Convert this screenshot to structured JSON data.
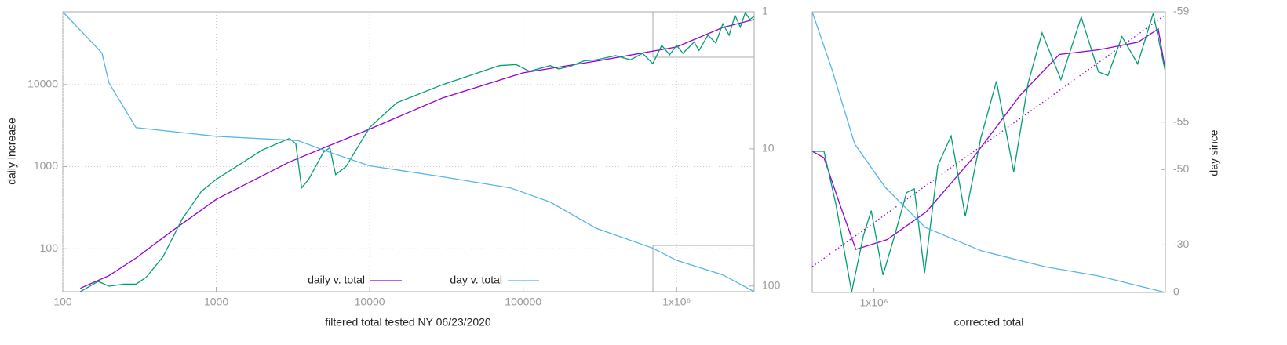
{
  "chart_data": [
    {
      "type": "line",
      "xlabel": "filtered total tested NY 06/23/2020",
      "ylabel": "daily increase",
      "xscale": "log",
      "yscale": "log",
      "y2scale": "log",
      "y2_reversed": true,
      "grid": true,
      "legend": "bottom",
      "xlim": [
        100,
        3200000
      ],
      "xticks": [
        100,
        1000,
        10000,
        100000,
        {
          "value": 1000000,
          "label": "1x10⁶"
        }
      ],
      "ylim": [
        30,
        77000
      ],
      "yticks": [
        100,
        1000,
        10000
      ],
      "y2lim": [
        1,
        110
      ],
      "y2ticks": [
        1,
        10,
        100
      ],
      "series": [
        {
          "name": "daily v. total",
          "color": "#9400d3",
          "x": [
            130,
            200,
            300,
            500,
            1000,
            3000,
            10000,
            30000,
            100000,
            300000,
            1000000,
            2000000,
            3200000
          ],
          "values": [
            33,
            47,
            77,
            158,
            400,
            1140,
            2870,
            6900,
            13900,
            19300,
            28700,
            49600,
            62000
          ]
        },
        {
          "color": "#009e73",
          "x": [
            130,
            170,
            200,
            250,
            300,
            350,
            450,
            600,
            800,
            1000,
            2000,
            3000,
            3300,
            3600,
            4000,
            5000,
            5500,
            6000,
            7000,
            10000,
            15000,
            30000,
            70000,
            90000,
            110000,
            150000,
            170000,
            200000,
            250000,
            300000,
            400000,
            500000,
            600000,
            700000,
            800000,
            900000,
            1000000,
            1100000,
            1300000,
            1400000,
            1600000,
            1800000,
            2000000,
            2200000,
            2400000,
            2600000,
            2800000,
            3000000,
            3200000
          ],
          "values": [
            30,
            40,
            35,
            37,
            37,
            45,
            80,
            230,
            500,
            700,
            1600,
            2200,
            1900,
            550,
            700,
            1500,
            1700,
            800,
            1000,
            3000,
            6000,
            10000,
            17000,
            17500,
            14500,
            17000,
            15500,
            16500,
            19500,
            20000,
            22500,
            20000,
            24000,
            18000,
            30000,
            23000,
            30000,
            24000,
            33000,
            26000,
            40000,
            32000,
            55000,
            40000,
            70000,
            50000,
            75000,
            62000,
            68000
          ]
        },
        {
          "name": "day v. total",
          "color": "#56b4e9",
          "axis": "y2",
          "x": [
            100,
            180,
            200,
            300,
            1000,
            3400,
            5500,
            10000,
            28000,
            83000,
            150000,
            300000,
            700000,
            1000000,
            2000000,
            3200000
          ],
          "values": [
            1,
            2,
            3.3,
            7,
            8.1,
            8.7,
            10.6,
            13.3,
            15.8,
            19.3,
            24.4,
            38,
            53,
            65,
            83,
            110
          ]
        }
      ]
    },
    {
      "type": "line",
      "xlabel": "corrected total",
      "y2label": "day since",
      "xscale": "log",
      "yscale": "log",
      "y2scale": "shifted-log",
      "y2_reversed": true,
      "grid": false,
      "xlim": [
        772000,
        3400000
      ],
      "xticks": [
        {
          "value": 1000000,
          "label": "1x10⁶"
        }
      ],
      "ylim": [
        21500,
        78000
      ],
      "y2lim": [
        -59,
        0
      ],
      "y2ticks": [
        -59,
        -55,
        -50,
        -30,
        0
      ],
      "series": [
        {
          "color": "#9400d3",
          "style": "dotted",
          "x": [
            772000,
            3400000
          ],
          "values": [
            24200,
            76900
          ]
        },
        {
          "color": "#9400d3",
          "x": [
            772000,
            811000,
            867000,
            927000,
            1057000,
            1245000,
            1517000,
            1849000,
            2178000,
            2570000,
            3030000,
            3300000,
            3400000
          ],
          "values": [
            41100,
            39900,
            32200,
            26200,
            27400,
            31100,
            39900,
            53200,
            64100,
            65500,
            67800,
            72100,
            59600
          ]
        },
        {
          "color": "#009e73",
          "x": [
            772700,
            811000,
            852800,
            911000,
            957000,
            989000,
            1039000,
            1091000,
            1147000,
            1185000,
            1237000,
            1308000,
            1383000,
            1468000,
            1567000,
            1673000,
            1799000,
            1910000,
            2026000,
            2193000,
            2388000,
            2567000,
            2671000,
            2834000,
            3027000,
            3231000,
            3396000
          ],
          "values": [
            41100,
            41100,
            32200,
            21560,
            27900,
            31300,
            23300,
            27900,
            34000,
            34600,
            23500,
            38500,
            44100,
            30500,
            43700,
            56700,
            37400,
            56100,
            70800,
            57100,
            76100,
            59200,
            58200,
            69600,
            61400,
            77400,
            59600
          ]
        },
        {
          "color": "#56b4e9",
          "axis": "y2",
          "x": [
            772000,
            838000,
            923000,
            1050000,
            1240000,
            1570000,
            2050000,
            2580000,
            3400000
          ],
          "values": [
            -59,
            -57.7,
            -53.1,
            -47,
            -36.8,
            -27.3,
            -18.8,
            -12.7,
            0
          ]
        }
      ]
    }
  ]
}
